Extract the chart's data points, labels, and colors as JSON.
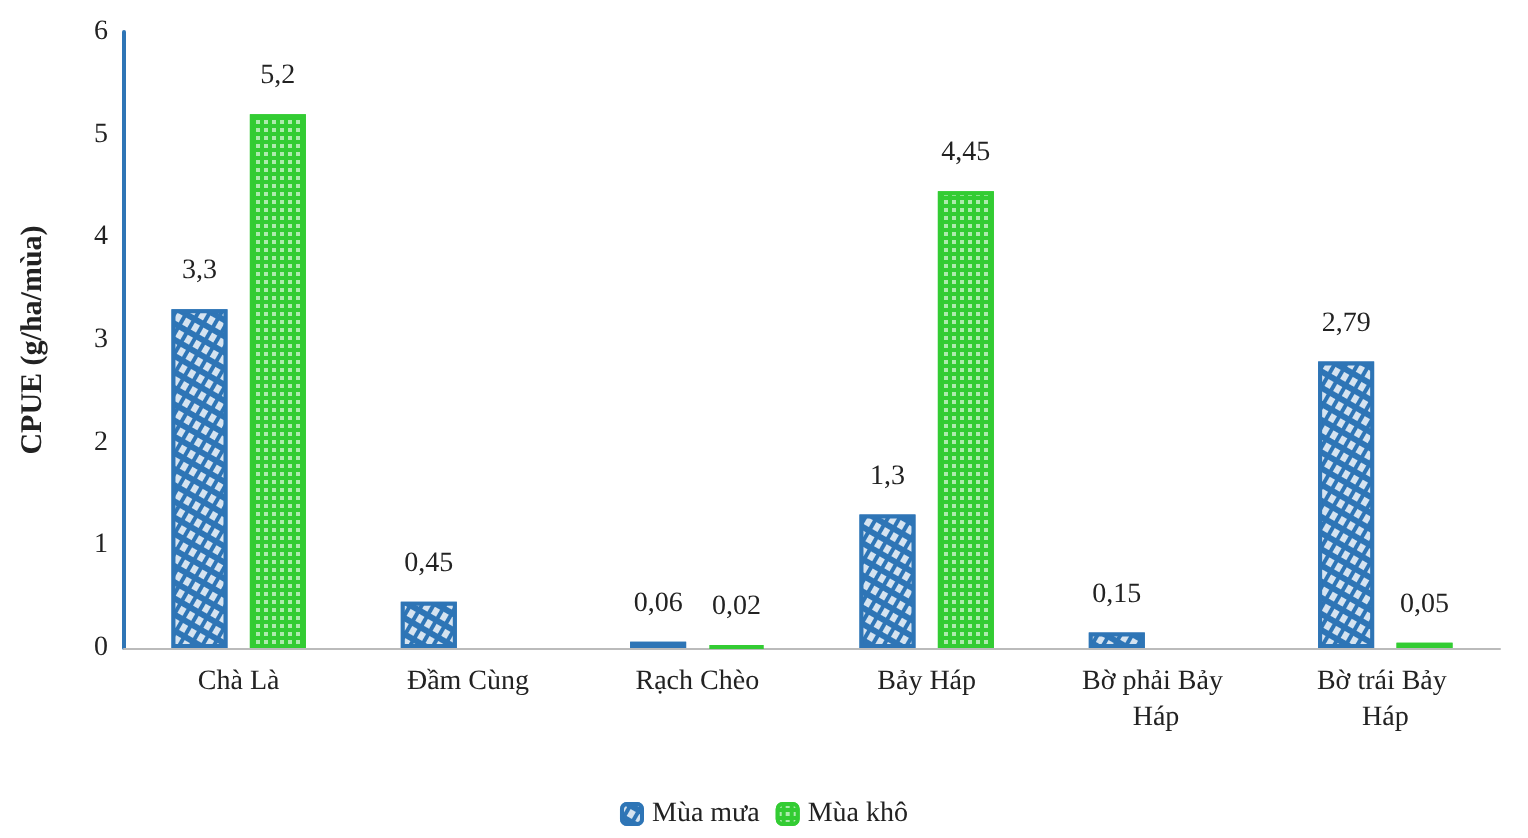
{
  "chart_data": {
    "type": "bar",
    "ylabel": "CPUE (g/ha/mùa)",
    "categories": [
      "Chà Là",
      "Đầm Cùng",
      "Rạch Chèo",
      "Bảy Háp",
      "Bờ phải Bảy Háp",
      "Bờ trái Bảy Háp"
    ],
    "series": [
      {
        "name": "Mùa mưa",
        "color": "#2e75b6",
        "values": [
          3.3,
          0.45,
          0.06,
          1.3,
          0.15,
          2.79
        ],
        "value_labels": [
          "3,3",
          "0,45",
          "0,06",
          "1,3",
          "0,15",
          "2,79"
        ]
      },
      {
        "name": "Mùa khô",
        "color": "#33cc33",
        "values": [
          5.2,
          null,
          0.02,
          4.45,
          null,
          0.05
        ],
        "value_labels": [
          "5,2",
          null,
          "0,02",
          "4,45",
          null,
          "0,05"
        ]
      }
    ],
    "ylim": [
      0,
      6
    ],
    "yticks": [
      0,
      1,
      2,
      3,
      4,
      5,
      6
    ],
    "grid": false,
    "legend": "bottom"
  }
}
